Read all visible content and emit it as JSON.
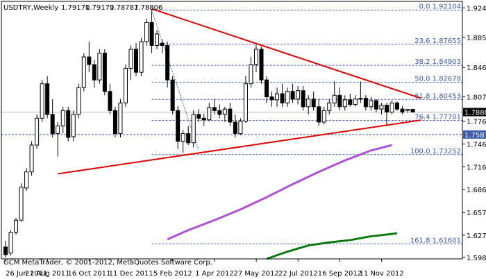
{
  "chart_data": {
    "type": "candlestick",
    "header": {
      "symbol": "USDTRY,Weekly",
      "open": "1.79170",
      "high": "1.79170",
      "low": "1.78787",
      "close": "1.78806"
    },
    "footer": "GCM MetaTrader, © 2001-2012, MetaQuotes Software Corp.",
    "ylim": [
      1.5965,
      1.9325
    ],
    "y_ticks": [
      "1.92400",
      "1.88560",
      "1.84635",
      "1.80785",
      "1.77610",
      "1.74635",
      "1.71660",
      "1.68690",
      "1.65710",
      "1.62735",
      "1.59845"
    ],
    "x_ticks": [
      {
        "label": "26 Jun 2011",
        "pos": 0.02
      },
      {
        "label": "21 Aug 2011",
        "pos": 8.02
      },
      {
        "label": "16 Oct 2011",
        "pos": 16.02
      },
      {
        "label": "11 Dec 2011",
        "pos": 24.02
      },
      {
        "label": "5 Feb 2012",
        "pos": 32.02
      },
      {
        "label": "1 Apr 2012",
        "pos": 40.02
      },
      {
        "label": "27 May 2012",
        "pos": 48.02
      },
      {
        "label": "22 Jul 2012",
        "pos": 56.02
      },
      {
        "label": "16 Sep 2012",
        "pos": 64.02
      },
      {
        "label": "11 Nov 2012",
        "pos": 72.02
      }
    ],
    "current_price": "1.78806",
    "fib_levels": [
      {
        "label": "0.0 1.92104",
        "value": 1.92104
      },
      {
        "label": "23.6 1.87655",
        "value": 1.87655
      },
      {
        "label": "38.2 1.84903",
        "value": 1.84903
      },
      {
        "label": "50.0 1.82678",
        "value": 1.82678
      },
      {
        "label": "61.8 1.80453",
        "value": 1.80453
      },
      {
        "label": "76.4 1.77701",
        "value": 1.77701
      },
      {
        "label": "100.0 1.73252",
        "value": 1.73252
      },
      {
        "label": "161.8 1.61601",
        "value": 1.61601
      }
    ],
    "support_level": {
      "label": "1.75875",
      "value": 1.75875
    },
    "trendlines": [
      {
        "name": "upper",
        "x0": 28,
        "y0": 1.9228,
        "x1": 79.5,
        "y1": 1.8062
      },
      {
        "name": "lower",
        "x0": 10,
        "y0": 1.7075,
        "x1": 79.5,
        "y1": 1.7775
      }
    ],
    "candles": [
      {
        "o": 1.612,
        "h": 1.62,
        "l": 1.5985,
        "c": 1.602
      },
      {
        "o": 1.604,
        "h": 1.634,
        "l": 1.601,
        "c": 1.631
      },
      {
        "o": 1.631,
        "h": 1.65,
        "l": 1.628,
        "c": 1.647
      },
      {
        "o": 1.647,
        "h": 1.695,
        "l": 1.645,
        "c": 1.69
      },
      {
        "o": 1.689,
        "h": 1.715,
        "l": 1.685,
        "c": 1.71
      },
      {
        "o": 1.71,
        "h": 1.75,
        "l": 1.705,
        "c": 1.745
      },
      {
        "o": 1.745,
        "h": 1.785,
        "l": 1.74,
        "c": 1.78
      },
      {
        "o": 1.78,
        "h": 1.83,
        "l": 1.775,
        "c": 1.825
      },
      {
        "o": 1.825,
        "h": 1.835,
        "l": 1.78,
        "c": 1.785
      },
      {
        "o": 1.785,
        "h": 1.805,
        "l": 1.755,
        "c": 1.76
      },
      {
        "o": 1.76,
        "h": 1.775,
        "l": 1.73,
        "c": 1.77
      },
      {
        "o": 1.77,
        "h": 1.795,
        "l": 1.76,
        "c": 1.79
      },
      {
        "o": 1.79,
        "h": 1.795,
        "l": 1.75,
        "c": 1.755
      },
      {
        "o": 1.756,
        "h": 1.79,
        "l": 1.75,
        "c": 1.785
      },
      {
        "o": 1.785,
        "h": 1.825,
        "l": 1.78,
        "c": 1.82
      },
      {
        "o": 1.82,
        "h": 1.865,
        "l": 1.815,
        "c": 1.86
      },
      {
        "o": 1.86,
        "h": 1.88,
        "l": 1.84,
        "c": 1.85
      },
      {
        "o": 1.85,
        "h": 1.856,
        "l": 1.82,
        "c": 1.83
      },
      {
        "o": 1.83,
        "h": 1.87,
        "l": 1.825,
        "c": 1.865
      },
      {
        "o": 1.865,
        "h": 1.87,
        "l": 1.81,
        "c": 1.815
      },
      {
        "o": 1.815,
        "h": 1.825,
        "l": 1.785,
        "c": 1.79
      },
      {
        "o": 1.79,
        "h": 1.795,
        "l": 1.755,
        "c": 1.76
      },
      {
        "o": 1.76,
        "h": 1.805,
        "l": 1.755,
        "c": 1.8
      },
      {
        "o": 1.8,
        "h": 1.85,
        "l": 1.795,
        "c": 1.845
      },
      {
        "o": 1.845,
        "h": 1.875,
        "l": 1.83,
        "c": 1.87
      },
      {
        "o": 1.87,
        "h": 1.878,
        "l": 1.835,
        "c": 1.84
      },
      {
        "o": 1.84,
        "h": 1.885,
        "l": 1.835,
        "c": 1.88
      },
      {
        "o": 1.88,
        "h": 1.91,
        "l": 1.875,
        "c": 1.905
      },
      {
        "o": 1.905,
        "h": 1.921,
        "l": 1.865,
        "c": 1.875
      },
      {
        "o": 1.875,
        "h": 1.895,
        "l": 1.87,
        "c": 1.89
      },
      {
        "o": 1.878,
        "h": 1.883,
        "l": 1.865,
        "c": 1.875
      },
      {
        "o": 1.875,
        "h": 1.88,
        "l": 1.82,
        "c": 1.83
      },
      {
        "o": 1.83,
        "h": 1.835,
        "l": 1.785,
        "c": 1.79
      },
      {
        "o": 1.79,
        "h": 1.796,
        "l": 1.74,
        "c": 1.75
      },
      {
        "o": 1.75,
        "h": 1.765,
        "l": 1.735,
        "c": 1.76
      },
      {
        "o": 1.76,
        "h": 1.77,
        "l": 1.745,
        "c": 1.748
      },
      {
        "o": 1.748,
        "h": 1.79,
        "l": 1.742,
        "c": 1.785
      },
      {
        "o": 1.785,
        "h": 1.792,
        "l": 1.775,
        "c": 1.78
      },
      {
        "o": 1.78,
        "h": 1.786,
        "l": 1.77,
        "c": 1.778
      },
      {
        "o": 1.778,
        "h": 1.8,
        "l": 1.776,
        "c": 1.794
      },
      {
        "o": 1.794,
        "h": 1.805,
        "l": 1.785,
        "c": 1.79
      },
      {
        "o": 1.79,
        "h": 1.798,
        "l": 1.78,
        "c": 1.785
      },
      {
        "o": 1.785,
        "h": 1.795,
        "l": 1.775,
        "c": 1.792
      },
      {
        "o": 1.792,
        "h": 1.8,
        "l": 1.77,
        "c": 1.775
      },
      {
        "o": 1.775,
        "h": 1.785,
        "l": 1.755,
        "c": 1.76
      },
      {
        "o": 1.76,
        "h": 1.78,
        "l": 1.758,
        "c": 1.776
      },
      {
        "o": 1.776,
        "h": 1.835,
        "l": 1.774,
        "c": 1.825
      },
      {
        "o": 1.825,
        "h": 1.86,
        "l": 1.82,
        "c": 1.85
      },
      {
        "o": 1.85,
        "h": 1.876,
        "l": 1.84,
        "c": 1.87
      },
      {
        "o": 1.87,
        "h": 1.873,
        "l": 1.825,
        "c": 1.83
      },
      {
        "o": 1.83,
        "h": 1.835,
        "l": 1.8,
        "c": 1.808
      },
      {
        "o": 1.808,
        "h": 1.815,
        "l": 1.795,
        "c": 1.804
      },
      {
        "o": 1.804,
        "h": 1.82,
        "l": 1.795,
        "c": 1.812
      },
      {
        "o": 1.812,
        "h": 1.825,
        "l": 1.795,
        "c": 1.8
      },
      {
        "o": 1.8,
        "h": 1.82,
        "l": 1.795,
        "c": 1.815
      },
      {
        "o": 1.815,
        "h": 1.825,
        "l": 1.8,
        "c": 1.805
      },
      {
        "o": 1.805,
        "h": 1.822,
        "l": 1.798,
        "c": 1.816
      },
      {
        "o": 1.816,
        "h": 1.822,
        "l": 1.79,
        "c": 1.795
      },
      {
        "o": 1.795,
        "h": 1.81,
        "l": 1.785,
        "c": 1.805
      },
      {
        "o": 1.805,
        "h": 1.815,
        "l": 1.79,
        "c": 1.795
      },
      {
        "o": 1.795,
        "h": 1.805,
        "l": 1.77,
        "c": 1.775
      },
      {
        "o": 1.775,
        "h": 1.795,
        "l": 1.772,
        "c": 1.79
      },
      {
        "o": 1.79,
        "h": 1.805,
        "l": 1.785,
        "c": 1.8
      },
      {
        "o": 1.8,
        "h": 1.828,
        "l": 1.795,
        "c": 1.81
      },
      {
        "o": 1.81,
        "h": 1.82,
        "l": 1.79,
        "c": 1.795
      },
      {
        "o": 1.795,
        "h": 1.81,
        "l": 1.79,
        "c": 1.804
      },
      {
        "o": 1.804,
        "h": 1.812,
        "l": 1.795,
        "c": 1.798
      },
      {
        "o": 1.798,
        "h": 1.81,
        "l": 1.795,
        "c": 1.805
      },
      {
        "o": 1.805,
        "h": 1.828,
        "l": 1.8,
        "c": 1.806
      },
      {
        "o": 1.806,
        "h": 1.81,
        "l": 1.79,
        "c": 1.795
      },
      {
        "o": 1.795,
        "h": 1.808,
        "l": 1.79,
        "c": 1.803
      },
      {
        "o": 1.803,
        "h": 1.805,
        "l": 1.788,
        "c": 1.792
      },
      {
        "o": 1.792,
        "h": 1.8,
        "l": 1.785,
        "c": 1.797
      },
      {
        "o": 1.797,
        "h": 1.8,
        "l": 1.77,
        "c": 1.788
      },
      {
        "o": 1.788,
        "h": 1.803,
        "l": 1.785,
        "c": 1.8
      },
      {
        "o": 1.8,
        "h": 1.802,
        "l": 1.79,
        "c": 1.792
      },
      {
        "o": 1.792,
        "h": 1.796,
        "l": 1.785,
        "c": 1.788
      },
      {
        "o": 1.79,
        "h": 1.7917,
        "l": 1.787,
        "c": 1.7917
      },
      {
        "o": 1.7917,
        "h": 1.7917,
        "l": 1.7879,
        "c": 1.7881
      }
    ],
    "moving_averages": [
      {
        "color": "#b04fd8",
        "points": [
          [
            31,
            1.622
          ],
          [
            35,
            1.634
          ],
          [
            40,
            1.647
          ],
          [
            45,
            1.661
          ],
          [
            50,
            1.677
          ],
          [
            55,
            1.694
          ],
          [
            60,
            1.71
          ],
          [
            65,
            1.725
          ],
          [
            70,
            1.738
          ],
          [
            74,
            1.745
          ]
        ]
      },
      {
        "color": "#0a7a0a",
        "points": [
          [
            50,
            1.5965
          ],
          [
            54,
            1.606
          ],
          [
            58,
            1.614
          ],
          [
            62,
            1.618
          ],
          [
            66,
            1.621
          ],
          [
            70,
            1.626
          ],
          [
            74,
            1.629
          ],
          [
            75,
            1.63
          ]
        ]
      }
    ]
  }
}
